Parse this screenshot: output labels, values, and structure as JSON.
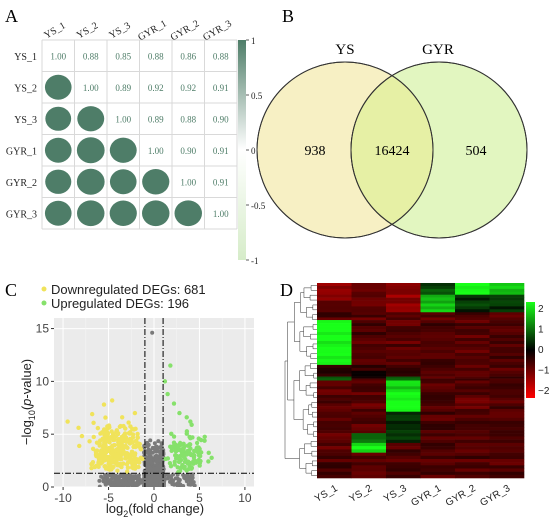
{
  "panels": {
    "a": "A",
    "b": "B",
    "c": "C",
    "d": "D"
  },
  "colors": {
    "corr_green": "#4e7d68",
    "venn_ys": "#f7f0c4",
    "venn_gyr": "#e2f6c0",
    "venn_overlap": "#e6f0a5",
    "down": "#f0e35a",
    "up": "#86e16b",
    "ns": "#7a7a7a",
    "heat_high": "#19ff19",
    "heat_mid": "#000000",
    "heat_low": "#ff0000"
  },
  "chart_data": [
    {
      "type": "heatmap",
      "title": "",
      "subtitle": "correlation matrix (upper: values, lower: circles)",
      "labels": [
        "YS_1",
        "YS_2",
        "YS_3",
        "GYR_1",
        "GYR_2",
        "GYR_3"
      ],
      "matrix": [
        [
          1.0,
          0.88,
          0.85,
          0.88,
          0.86,
          0.88
        ],
        [
          0.88,
          1.0,
          0.89,
          0.92,
          0.92,
          0.91
        ],
        [
          0.85,
          0.89,
          1.0,
          0.89,
          0.88,
          0.9
        ],
        [
          0.88,
          0.92,
          0.89,
          1.0,
          0.9,
          0.91
        ],
        [
          0.86,
          0.92,
          0.88,
          0.9,
          1.0,
          0.91
        ],
        [
          0.88,
          0.91,
          0.9,
          0.91,
          0.91,
          1.0
        ]
      ],
      "value_text": [
        [
          "1.00",
          "0.88",
          "0.85",
          "0.88",
          "0.86",
          "0.88"
        ],
        [
          "",
          "1.00",
          "0.89",
          "0.92",
          "0.92",
          "0.91"
        ],
        [
          "",
          "",
          "1.00",
          "0.89",
          "0.88",
          "0.90"
        ],
        [
          "",
          "",
          "",
          "1.00",
          "0.90",
          "0.91"
        ],
        [
          "",
          "",
          "",
          "",
          "1.00",
          "0.91"
        ],
        [
          "",
          "",
          "",
          "",
          "",
          "1.00"
        ]
      ],
      "colorbar_ticks": [
        "1",
        "0.5",
        "0",
        "-0.5",
        "-1"
      ],
      "colorbar_range": [
        -1,
        1
      ]
    },
    {
      "type": "venn",
      "sets": [
        "YS",
        "GYR"
      ],
      "values": {
        "YS_only": 938,
        "both": 16424,
        "GYR_only": 504
      },
      "labels": {
        "YS_only": "938",
        "both": "16424",
        "GYR_only": "504"
      }
    },
    {
      "type": "scatter",
      "legend": [
        {
          "name": "Downregulated DEGs: 681",
          "color": "#f0e35a"
        },
        {
          "name": "Upregulated DEGs: 196",
          "color": "#86e16b"
        }
      ],
      "xlabel": "log2(fold change)",
      "xlabel_main": "log",
      "xlabel_sub": "2",
      "xlabel_rest": "(fold change)",
      "ylabel": "-log10(p-value)",
      "ylabel_main": "−log",
      "ylabel_sub": "10",
      "ylabel_rest": "(",
      "ylabel_p": "p",
      "ylabel_end": "-value)",
      "xlim": [
        -11,
        11
      ],
      "ylim": [
        0,
        16
      ],
      "x_ticks": [
        -10,
        -5,
        0,
        5,
        10
      ],
      "y_ticks": [
        0,
        5,
        10,
        15
      ],
      "x_tick_labels": [
        "-10",
        "-5",
        "0",
        "5",
        "10"
      ],
      "y_tick_labels": [
        "0",
        "5",
        "10",
        "15"
      ],
      "thresholds": {
        "fc": [
          -1,
          1
        ],
        "p_line": 1.3
      },
      "grid": true
    },
    {
      "type": "heatmap",
      "columns": [
        "YS_1",
        "YS_2",
        "YS_3",
        "GYR_1",
        "GYR_2",
        "GYR_3"
      ],
      "colorbar_ticks": [
        "2",
        "1",
        "0",
        "−1",
        "−2"
      ],
      "colorbar_range": [
        -2,
        2
      ],
      "rows_description_blocks": [
        {
          "frac": 0.06,
          "values": [
            -1.0,
            -0.8,
            -1.0,
            0.6,
            2.0,
            1.6
          ]
        },
        {
          "frac": 0.09,
          "values": [
            -0.9,
            -0.8,
            -1.1,
            1.5,
            0.4,
            0.4
          ]
        },
        {
          "frac": 0.04,
          "values": [
            -0.6,
            -0.7,
            -0.7,
            -0.7,
            -0.6,
            -0.7
          ]
        },
        {
          "frac": 0.23,
          "values": [
            2.0,
            -0.6,
            -0.7,
            -0.6,
            -0.7,
            -0.6
          ]
        },
        {
          "frac": 0.06,
          "values": [
            -0.4,
            -0.3,
            -0.5,
            -0.6,
            -0.6,
            -0.6
          ]
        },
        {
          "frac": 0.02,
          "values": [
            0.6,
            -0.4,
            0.8,
            -0.6,
            -0.6,
            -0.6
          ]
        },
        {
          "frac": 0.06,
          "values": [
            -0.7,
            -0.6,
            1.6,
            -0.6,
            -0.6,
            -0.6
          ]
        },
        {
          "frac": 0.1,
          "values": [
            -0.7,
            -0.7,
            2.0,
            -0.6,
            -0.7,
            -0.6
          ]
        },
        {
          "frac": 0.11,
          "values": [
            -0.6,
            -0.7,
            0.4,
            -0.6,
            -0.6,
            -0.6
          ]
        },
        {
          "frac": 0.05,
          "values": [
            -0.7,
            0.8,
            0.3,
            -0.6,
            -0.6,
            -0.6
          ]
        },
        {
          "frac": 0.05,
          "values": [
            -0.7,
            1.9,
            -0.6,
            -0.6,
            -0.6,
            -0.6
          ]
        },
        {
          "frac": 0.13,
          "values": [
            -0.6,
            -0.6,
            -0.6,
            -0.6,
            -0.6,
            -0.6
          ]
        }
      ]
    }
  ]
}
